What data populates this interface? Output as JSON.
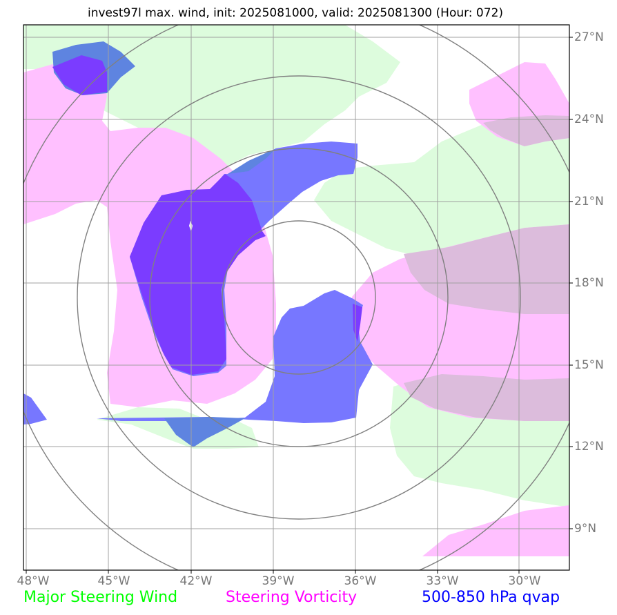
{
  "title": "invest97l max. wind, init: 2025081000, valid: 2025081300 (Hour: 072)",
  "axes": {
    "lon_ticks": [
      "48°W",
      "45°W",
      "42°W",
      "39°W",
      "36°W",
      "33°W",
      "30°W"
    ],
    "lat_ticks": [
      "27°N",
      "24°N",
      "21°N",
      "18°N",
      "15°N",
      "12°N",
      "9°N"
    ]
  },
  "legend": [
    {
      "label": "Major Steering Wind",
      "color": "#00ff00"
    },
    {
      "label": "Steering Vorticity",
      "color": "#ff00ff"
    },
    {
      "label": "500-850 hPa qvap",
      "color": "#0000ff"
    }
  ],
  "layers": {
    "wind_fill": "#ddfcdd",
    "vorticity_fill": "#ffc0ff",
    "vorticity_overlap_fill": "#dcbcdc",
    "qvap_fill": "#7777ff",
    "qvap_dense_fill": "#7b3cff",
    "qvap_wind_overlap_fill": "#5e84e0",
    "range_ring_color": "#808080",
    "gridline_color": "#a0a0a0"
  }
}
